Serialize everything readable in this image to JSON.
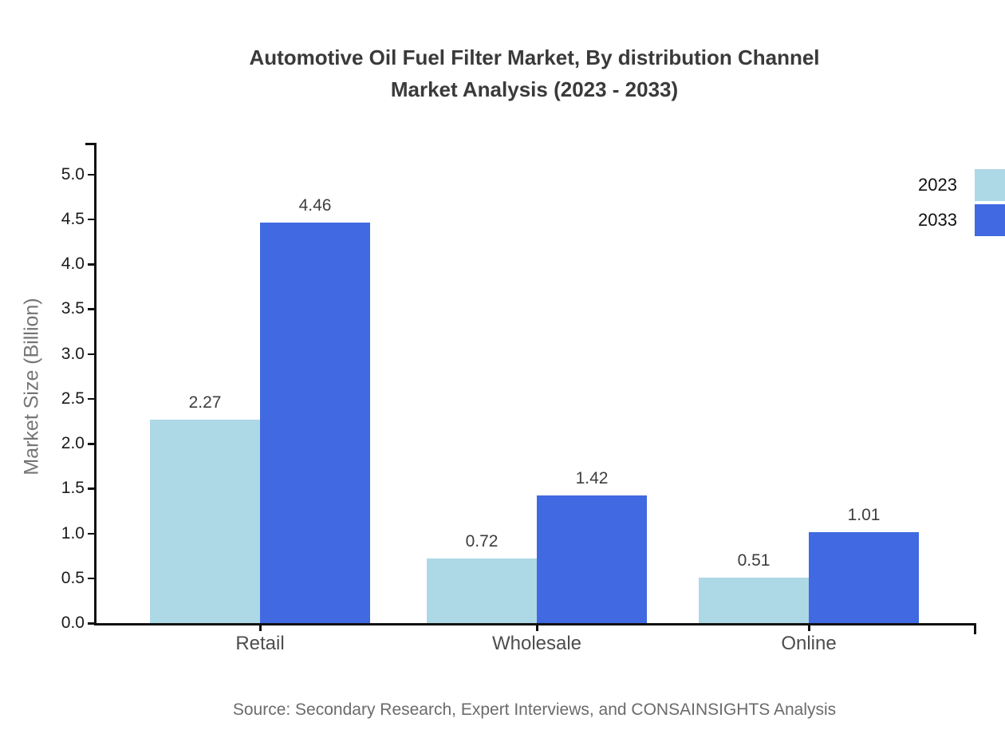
{
  "title": {
    "line1": "Automotive Oil Fuel Filter Market, By distribution Channel",
    "line2": "Market Analysis (2023 - 2033)"
  },
  "source": "Source: Secondary Research, Expert Interviews, and CONSAINSIGHTS Analysis",
  "colors": {
    "series_2023": "#ADD8E6",
    "series_2033": "#4169E1",
    "axis": "#111111",
    "title_text": "#3A3A3A",
    "tick_label_text": "#1A1A1A",
    "category_label_text": "#4D4D4D",
    "value_label_text": "#3D3D3D",
    "y_axis_title_text": "#757575",
    "source_text": "#6B6B6B",
    "background": "#FFFFFF"
  },
  "legend": {
    "position": "top-right",
    "entries": [
      {
        "label": "2023",
        "color": "#ADD8E6"
      },
      {
        "label": "2033",
        "color": "#4169E1"
      }
    ]
  },
  "chart_data": {
    "type": "bar",
    "title": "Automotive Oil Fuel Filter Market, By distribution Channel Market Analysis (2023 - 2033)",
    "categories": [
      "Retail",
      "Wholesale",
      "Online"
    ],
    "series": [
      {
        "name": "2023",
        "color": "#ADD8E6",
        "values": [
          2.27,
          0.72,
          0.51
        ]
      },
      {
        "name": "2033",
        "color": "#4169E1",
        "values": [
          4.46,
          1.42,
          1.01
        ]
      }
    ],
    "xlabel": "",
    "ylabel": "Market Size (Billion)",
    "ylim": [
      0.0,
      5.0
    ],
    "ytick_step": 0.5,
    "ytick_format_decimals": 1,
    "value_label_decimals": 2,
    "grid": false,
    "legend_position": "top-right",
    "value_labels": true
  }
}
